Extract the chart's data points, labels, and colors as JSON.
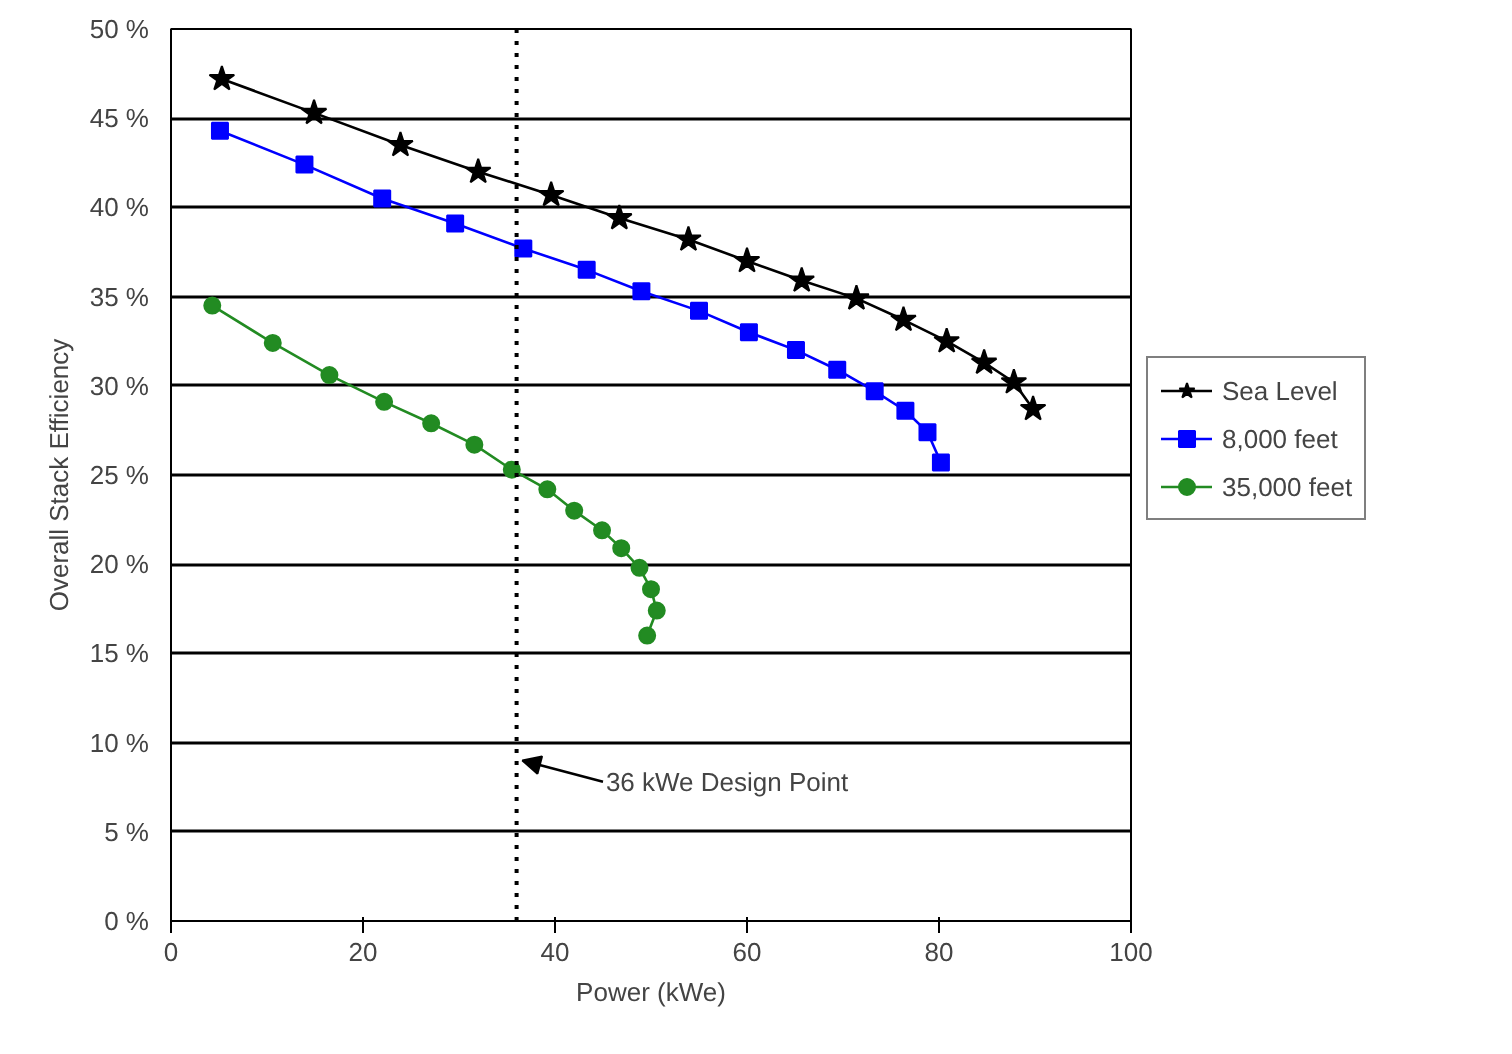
{
  "chart_data": {
    "type": "line",
    "xlabel": "Power (kWe)",
    "ylabel": "Overall Stack Efficiency",
    "xlim": [
      0,
      100
    ],
    "xticks": [
      0,
      20,
      40,
      60,
      80,
      100
    ],
    "ylim": [
      0,
      50
    ],
    "yticks": [
      {
        "value": 0,
        "label": "0 %"
      },
      {
        "value": 5,
        "label": "5 %"
      },
      {
        "value": 10,
        "label": "10 %"
      },
      {
        "value": 15,
        "label": "15 %"
      },
      {
        "value": 20,
        "label": "20 %"
      },
      {
        "value": 25,
        "label": "25 %"
      },
      {
        "value": 30,
        "label": "30 %"
      },
      {
        "value": 35,
        "label": "35 %"
      },
      {
        "value": 40,
        "label": "40 %"
      },
      {
        "value": 45,
        "label": "45 %"
      },
      {
        "value": 50,
        "label": "50 %"
      }
    ],
    "grid": "y",
    "legend": "right",
    "line_style": "solid",
    "series": [
      {
        "name": "Sea Level",
        "color": "#000000",
        "marker": "star",
        "x": [
          5.3,
          14.9,
          23.9,
          32,
          39.6,
          46.7,
          53.9,
          60,
          65.7,
          71.4,
          76.3,
          80.8,
          84.7,
          87.8,
          89.8
        ],
        "values": [
          47.2,
          45.3,
          43.5,
          42.0,
          40.7,
          39.4,
          38.2,
          37.0,
          35.9,
          34.9,
          33.7,
          32.5,
          31.3,
          30.2,
          28.7
        ]
      },
      {
        "name": "8,000 feet",
        "color": "#0000ff",
        "marker": "square",
        "x": [
          5.1,
          13.9,
          22,
          29.6,
          36.7,
          43.3,
          49,
          55,
          60.2,
          65.1,
          69.4,
          73.3,
          76.5,
          78.8,
          80.2
        ],
        "values": [
          44.3,
          42.4,
          40.5,
          39.1,
          37.7,
          36.5,
          35.3,
          34.2,
          33.0,
          32.0,
          30.9,
          29.7,
          28.6,
          27.4,
          25.7
        ]
      },
      {
        "name": "35,000 feet",
        "color": "#228b22",
        "marker": "circle",
        "x": [
          4.3,
          10.6,
          16.5,
          22.2,
          27.1,
          31.6,
          35.5,
          39.2,
          42.0,
          44.9,
          46.9,
          48.8,
          50,
          50.6,
          49.6
        ],
        "values": [
          34.5,
          32.4,
          30.6,
          29.1,
          27.9,
          26.7,
          25.3,
          24.2,
          23.0,
          21.9,
          20.9,
          19.8,
          18.6,
          17.4,
          16.0
        ]
      }
    ],
    "ref_lines": [
      {
        "axis": "x",
        "value": 36,
        "color": "#000000",
        "line_style": "dotted"
      }
    ],
    "annotations": [
      {
        "text": "36 kWe Design Point",
        "x": 36,
        "y": 9
      }
    ]
  }
}
